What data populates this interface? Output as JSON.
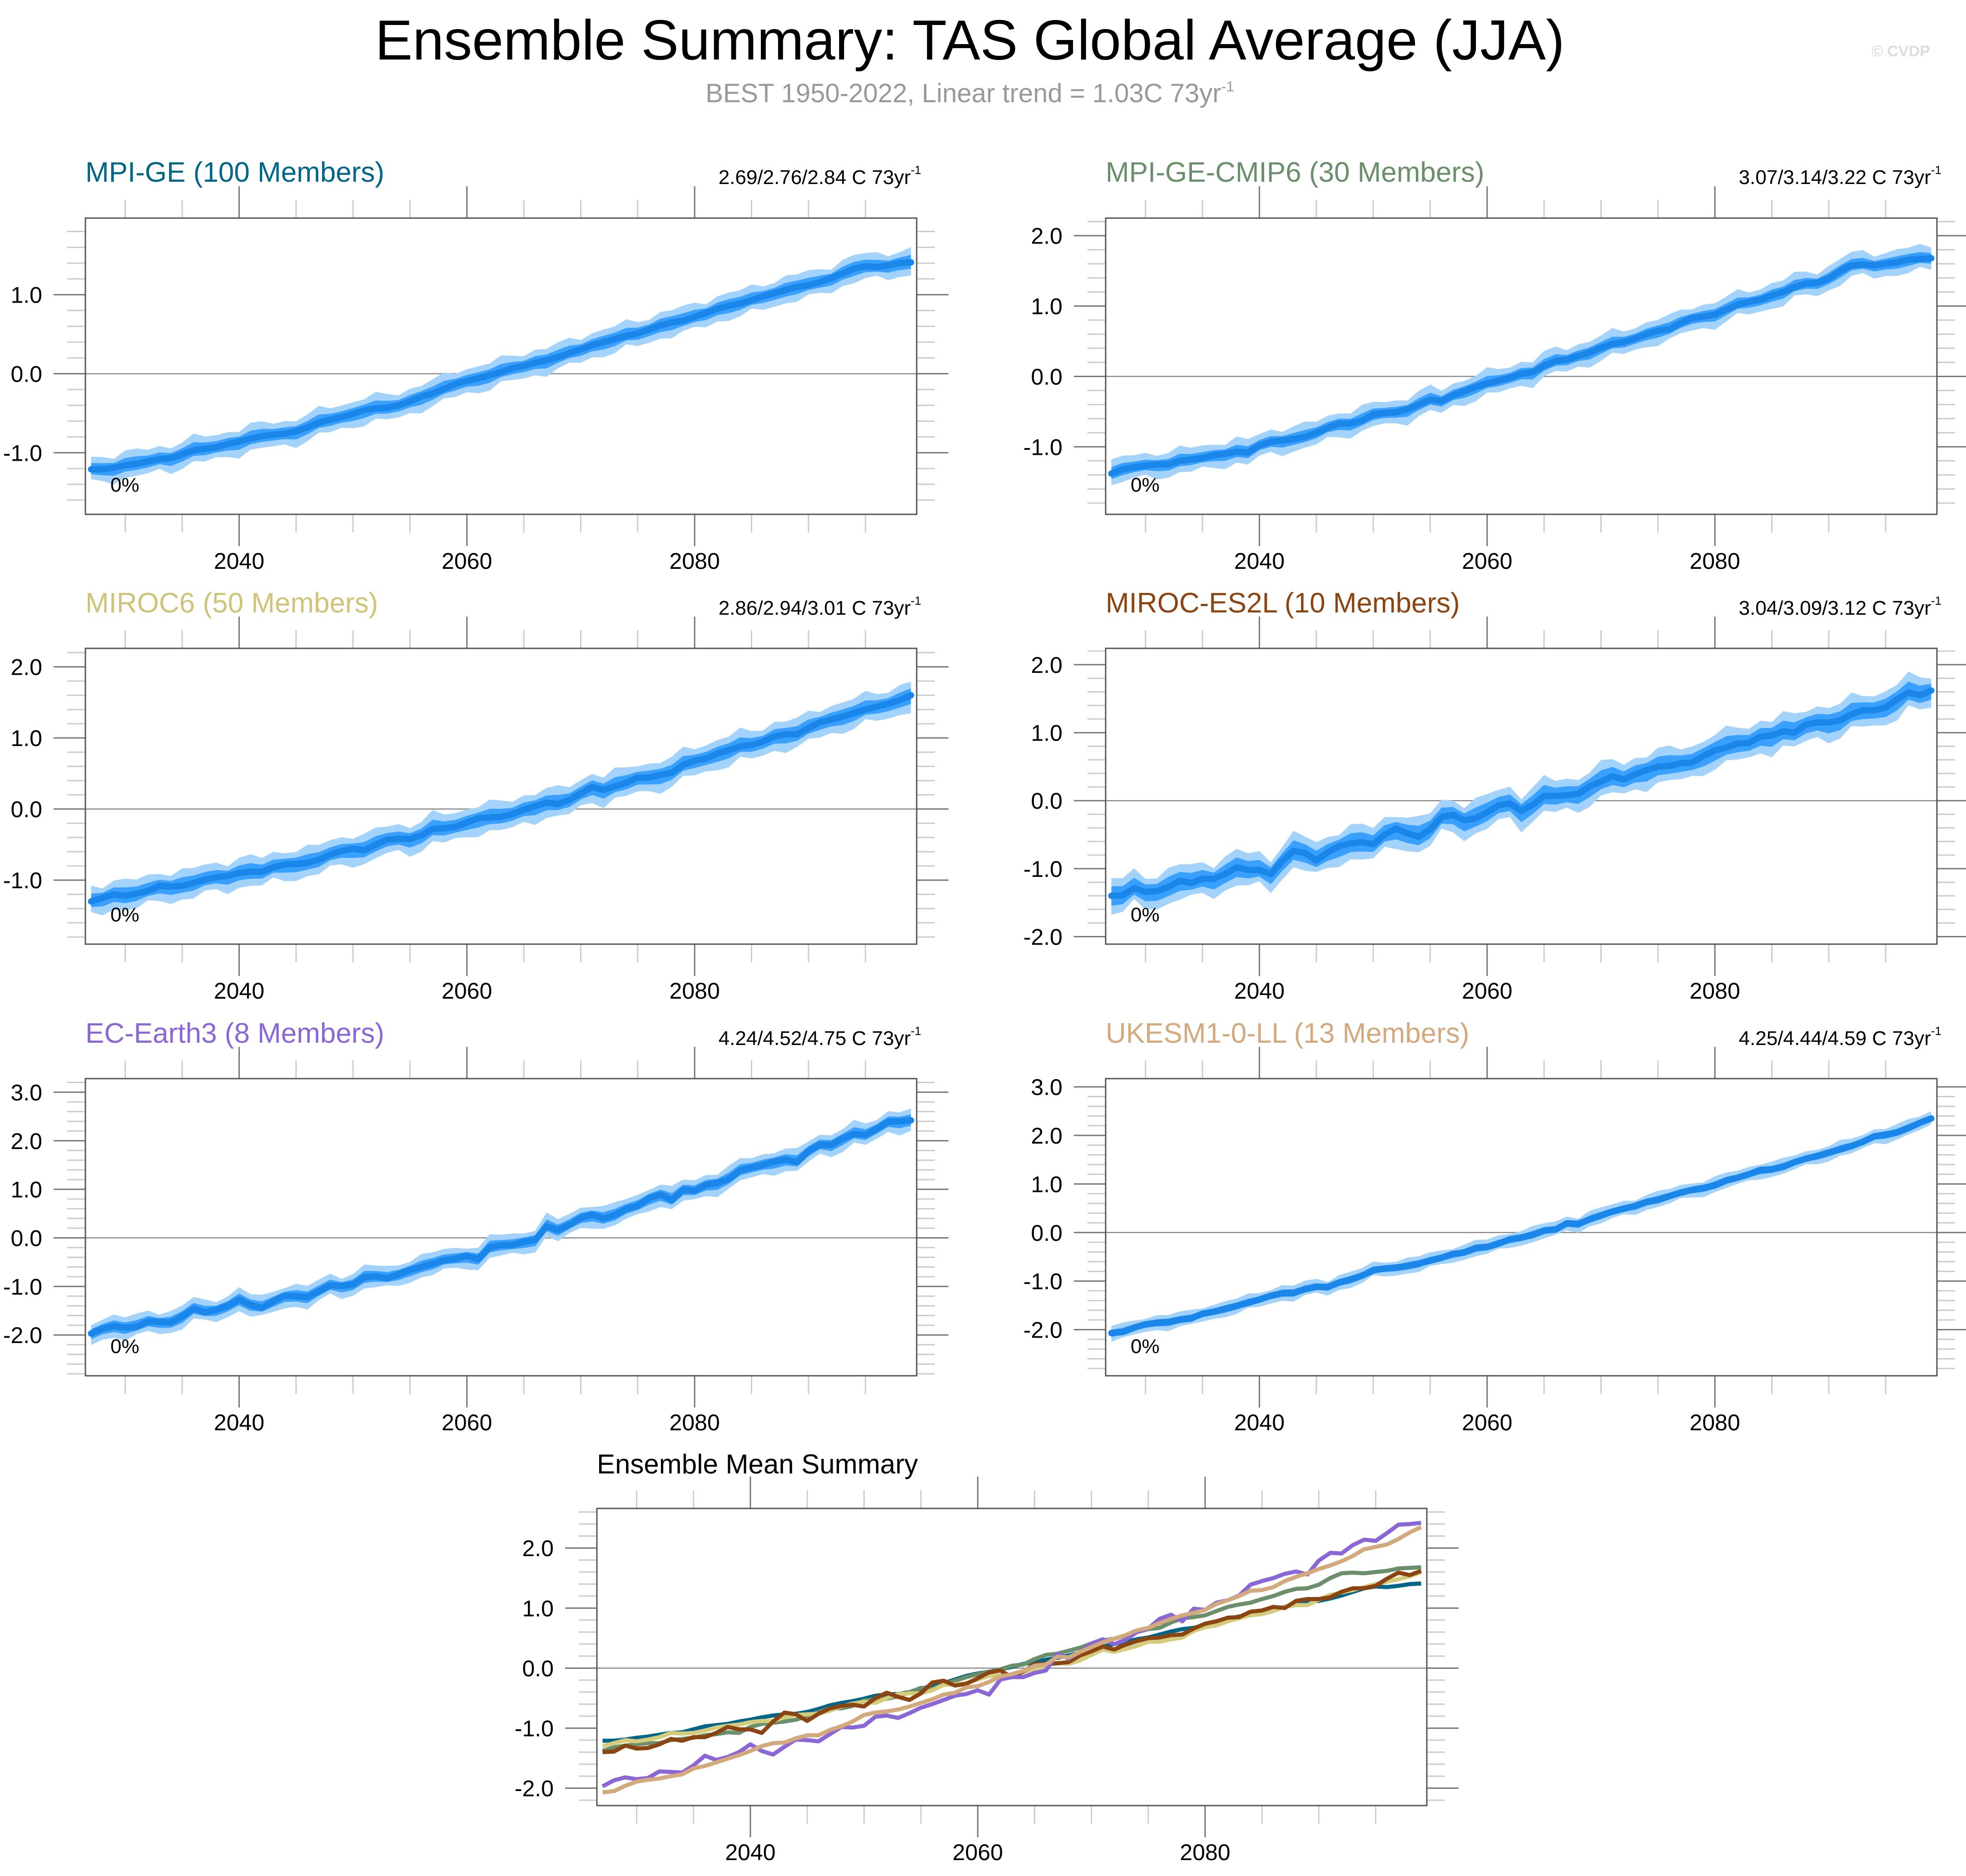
{
  "title": "Ensemble Summary: TAS Global Average (JJA)",
  "subtitle": {
    "text": "BEST 1950-2022, Linear trend = 1.03C 73yr",
    "superscript": "-1"
  },
  "watermark": "© CVDP",
  "colors": {
    "band_outer": "#a3d2fb",
    "band_inner": "#3aa0ff",
    "mean_line": "#1a86ea",
    "zero_line": "#888888",
    "axis": "#555555"
  },
  "chart_data": [
    {
      "type": "area",
      "title": "MPI-GE (100 Members)",
      "title_color": "#006688",
      "trend_label": "2.69/2.76/2.84 C 73yr",
      "trend_superscript": "-1",
      "percent_label": "0%",
      "x_start": 2027,
      "x_end": 2099,
      "xlim": [
        2026.5,
        2099.5
      ],
      "ylim": [
        -1.78,
        1.97
      ],
      "xticks": [
        2040,
        2060,
        2080
      ],
      "yticks": [
        -1.0,
        0.0,
        1.0
      ],
      "ytick_labels": [
        "-1.0",
        "0.0",
        "1.0"
      ],
      "grid": false,
      "mean": [
        -1.21,
        -1.21,
        -1.19,
        -1.16,
        -1.14,
        -1.11,
        -1.08,
        -1.07,
        -1.02,
        -0.97,
        -0.95,
        -0.93,
        -0.89,
        -0.86,
        -0.82,
        -0.79,
        -0.77,
        -0.76,
        -0.73,
        -0.68,
        -0.62,
        -0.58,
        -0.55,
        -0.51,
        -0.46,
        -0.44,
        -0.43,
        -0.4,
        -0.35,
        -0.29,
        -0.25,
        -0.19,
        -0.13,
        -0.09,
        -0.06,
        -0.02,
        0.02,
        0.07,
        0.1,
        0.14,
        0.17,
        0.21,
        0.26,
        0.31,
        0.36,
        0.4,
        0.44,
        0.48,
        0.51,
        0.56,
        0.61,
        0.65,
        0.67,
        0.72,
        0.77,
        0.82,
        0.86,
        0.89,
        0.93,
        0.98,
        1.02,
        1.06,
        1.1,
        1.12,
        1.16,
        1.21,
        1.27,
        1.33,
        1.36,
        1.35,
        1.37,
        1.4,
        1.41
      ],
      "inner_halfwidth": 0.08,
      "outer_halfwidth": 0.16,
      "band_color": "#3aa0ff"
    },
    {
      "type": "area",
      "title": "MPI-GE-CMIP6 (30 Members)",
      "title_color": "#6b8f6b",
      "trend_label": "3.07/3.14/3.22 C 73yr",
      "trend_superscript": "-1",
      "percent_label": "0%",
      "x_start": 2027,
      "x_end": 2099,
      "xlim": [
        2026.5,
        2099.5
      ],
      "ylim": [
        -1.96,
        2.25
      ],
      "xticks": [
        2040,
        2060,
        2080
      ],
      "yticks": [
        -1.0,
        0.0,
        1.0,
        2.0
      ],
      "ytick_labels": [
        "-1.0",
        "0.0",
        "1.0",
        "2.0"
      ],
      "grid": false,
      "mean": [
        -1.38,
        -1.32,
        -1.29,
        -1.27,
        -1.25,
        -1.25,
        -1.2,
        -1.18,
        -1.16,
        -1.12,
        -1.1,
        -1.07,
        -1.08,
        -0.98,
        -0.93,
        -0.91,
        -0.89,
        -0.86,
        -0.8,
        -0.73,
        -0.67,
        -0.67,
        -0.63,
        -0.54,
        -0.52,
        -0.51,
        -0.47,
        -0.4,
        -0.33,
        -0.35,
        -0.27,
        -0.21,
        -0.15,
        -0.1,
        -0.06,
        -0.02,
        0.04,
        0.06,
        0.15,
        0.22,
        0.24,
        0.29,
        0.34,
        0.41,
        0.46,
        0.49,
        0.54,
        0.6,
        0.65,
        0.67,
        0.76,
        0.83,
        0.85,
        0.88,
        0.95,
        1.02,
        1.06,
        1.09,
        1.15,
        1.2,
        1.27,
        1.32,
        1.33,
        1.39,
        1.5,
        1.58,
        1.59,
        1.58,
        1.6,
        1.62,
        1.66,
        1.67,
        1.68
      ],
      "inner_halfwidth": 0.08,
      "outer_halfwidth": 0.17,
      "band_color": "#3aa0ff"
    },
    {
      "type": "area",
      "title": "MIROC6 (50 Members)",
      "title_color": "#cfc47a",
      "trend_label": "2.86/2.94/3.01 C 73yr",
      "trend_superscript": "-1",
      "percent_label": "0%",
      "x_start": 2027,
      "x_end": 2099,
      "xlim": [
        2026.5,
        2099.5
      ],
      "ylim": [
        -1.9,
        2.26
      ],
      "xticks": [
        2040,
        2060,
        2080
      ],
      "yticks": [
        -1.0,
        0.0,
        1.0,
        2.0
      ],
      "ytick_labels": [
        "-1.0",
        "0.0",
        "1.0",
        "2.0"
      ],
      "grid": false,
      "mean": [
        -1.3,
        -1.25,
        -1.2,
        -1.22,
        -1.19,
        -1.15,
        -1.08,
        -1.09,
        -1.08,
        -1.04,
        -0.99,
        -0.96,
        -0.94,
        -0.9,
        -0.88,
        -0.88,
        -0.82,
        -0.78,
        -0.77,
        -0.76,
        -0.71,
        -0.64,
        -0.59,
        -0.56,
        -0.58,
        -0.5,
        -0.43,
        -0.42,
        -0.42,
        -0.37,
        -0.28,
        -0.27,
        -0.25,
        -0.19,
        -0.13,
        -0.12,
        -0.11,
        -0.07,
        -0.01,
        0.04,
        0.09,
        0.07,
        0.13,
        0.22,
        0.31,
        0.27,
        0.32,
        0.37,
        0.44,
        0.44,
        0.48,
        0.51,
        0.62,
        0.68,
        0.71,
        0.78,
        0.83,
        0.88,
        0.9,
        0.95,
        1.02,
        1.05,
        1.05,
        1.14,
        1.22,
        1.26,
        1.3,
        1.35,
        1.4,
        1.44,
        1.48,
        1.53,
        1.6
      ],
      "inner_halfwidth": 0.1,
      "outer_halfwidth": 0.2,
      "band_color": "#3aa0ff"
    },
    {
      "type": "area",
      "title": "MIROC-ES2L (10 Members)",
      "title_color": "#8b4513",
      "trend_label": "3.04/3.09/3.12 C 73yr",
      "trend_superscript": "-1",
      "percent_label": "0%",
      "x_start": 2027,
      "x_end": 2099,
      "xlim": [
        2026.5,
        2099.5
      ],
      "ylim": [
        -2.11,
        2.24
      ],
      "xticks": [
        2040,
        2060,
        2080
      ],
      "yticks": [
        -2.0,
        -1.0,
        0.0,
        1.0,
        2.0
      ],
      "ytick_labels": [
        "-2.0",
        "-1.0",
        "0.0",
        "1.0",
        "2.0"
      ],
      "grid": false,
      "mean": [
        -1.4,
        -1.39,
        -1.29,
        -1.34,
        -1.33,
        -1.27,
        -1.18,
        -1.21,
        -1.15,
        -1.15,
        -1.08,
        -0.98,
        -1.02,
        -1.02,
        -1.08,
        -0.89,
        -0.74,
        -0.77,
        -0.88,
        -0.76,
        -0.67,
        -0.63,
        -0.61,
        -0.64,
        -0.5,
        -0.41,
        -0.48,
        -0.53,
        -0.42,
        -0.24,
        -0.21,
        -0.29,
        -0.26,
        -0.17,
        -0.07,
        -0.04,
        -0.15,
        -0.06,
        0.07,
        0.07,
        0.08,
        0.1,
        0.21,
        0.28,
        0.36,
        0.31,
        0.39,
        0.45,
        0.5,
        0.51,
        0.55,
        0.56,
        0.66,
        0.74,
        0.78,
        0.84,
        0.85,
        0.94,
        0.96,
        1.02,
        1.0,
        1.12,
        1.15,
        1.15,
        1.18,
        1.27,
        1.33,
        1.33,
        1.37,
        1.49,
        1.59,
        1.55,
        1.62
      ],
      "inner_halfwidth": 0.13,
      "outer_halfwidth": 0.24,
      "band_color": "#3aa0ff"
    },
    {
      "type": "area",
      "title": "EC-Earth3 (8 Members)",
      "title_color": "#8b67d6",
      "trend_label": "4.24/4.52/4.75 C 73yr",
      "trend_superscript": "-1",
      "percent_label": "0%",
      "x_start": 2027,
      "x_end": 2099,
      "xlim": [
        2026.5,
        2099.5
      ],
      "ylim": [
        -2.84,
        3.28
      ],
      "xticks": [
        2040,
        2060,
        2080
      ],
      "yticks": [
        -2.0,
        -1.0,
        0.0,
        1.0,
        2.0,
        3.0
      ],
      "ytick_labels": [
        "-2.0",
        "-1.0",
        "0.0",
        "1.0",
        "2.0",
        "3.0"
      ],
      "grid": false,
      "mean": [
        -1.97,
        -1.87,
        -1.82,
        -1.85,
        -1.83,
        -1.72,
        -1.73,
        -1.74,
        -1.62,
        -1.46,
        -1.53,
        -1.48,
        -1.4,
        -1.27,
        -1.38,
        -1.44,
        -1.31,
        -1.19,
        -1.2,
        -1.22,
        -1.1,
        -0.98,
        -0.99,
        -0.96,
        -0.81,
        -0.79,
        -0.83,
        -0.75,
        -0.66,
        -0.6,
        -0.53,
        -0.46,
        -0.43,
        -0.37,
        -0.44,
        -0.19,
        -0.15,
        -0.15,
        -0.08,
        -0.04,
        0.24,
        0.16,
        0.27,
        0.41,
        0.48,
        0.4,
        0.47,
        0.6,
        0.66,
        0.82,
        0.89,
        0.78,
        0.99,
        0.97,
        1.09,
        1.13,
        1.21,
        1.39,
        1.45,
        1.5,
        1.57,
        1.61,
        1.56,
        1.79,
        1.92,
        1.91,
        2.05,
        2.14,
        2.12,
        2.25,
        2.39,
        2.4,
        2.42
      ],
      "inner_halfwidth": 0.11,
      "outer_halfwidth": 0.22,
      "band_color": "#3aa0ff"
    },
    {
      "type": "area",
      "title": "UKESM1-0-LL (13 Members)",
      "title_color": "#d2aa7d",
      "trend_label": "4.25/4.44/4.59 C 73yr",
      "trend_superscript": "-1",
      "percent_label": "0%",
      "x_start": 2027,
      "x_end": 2099,
      "xlim": [
        2026.5,
        2099.5
      ],
      "ylim": [
        -2.95,
        3.17
      ],
      "xticks": [
        2040,
        2060,
        2080
      ],
      "yticks": [
        -2.0,
        -1.0,
        0.0,
        1.0,
        2.0,
        3.0
      ],
      "ytick_labels": [
        "-2.0",
        "-1.0",
        "0.0",
        "1.0",
        "2.0",
        "3.0"
      ],
      "grid": false,
      "mean": [
        -2.07,
        -2.05,
        -1.96,
        -1.89,
        -1.86,
        -1.84,
        -1.8,
        -1.77,
        -1.67,
        -1.63,
        -1.57,
        -1.51,
        -1.45,
        -1.38,
        -1.3,
        -1.25,
        -1.24,
        -1.17,
        -1.12,
        -1.12,
        -1.03,
        -0.97,
        -0.89,
        -0.78,
        -0.74,
        -0.72,
        -0.69,
        -0.64,
        -0.58,
        -0.52,
        -0.44,
        -0.41,
        -0.32,
        -0.3,
        -0.23,
        -0.14,
        -0.1,
        -0.05,
        0.04,
        0.06,
        0.19,
        0.18,
        0.27,
        0.35,
        0.43,
        0.49,
        0.55,
        0.63,
        0.67,
        0.75,
        0.82,
        0.88,
        0.92,
        0.97,
        1.07,
        1.13,
        1.2,
        1.29,
        1.3,
        1.35,
        1.45,
        1.52,
        1.58,
        1.65,
        1.71,
        1.78,
        1.87,
        1.98,
        2.02,
        2.06,
        2.15,
        2.26,
        2.35
      ],
      "inner_halfwidth": 0.07,
      "outer_halfwidth": 0.15,
      "band_color": "#3aa0ff"
    },
    {
      "type": "line",
      "title": "Ensemble Mean Summary",
      "x_start": 2027,
      "x_end": 2099,
      "xlim": [
        2026.5,
        2099.5
      ],
      "ylim": [
        -2.29,
        2.66
      ],
      "xticks": [
        2040,
        2060,
        2080
      ],
      "yticks": [
        -2.0,
        -1.0,
        0.0,
        1.0,
        2.0
      ],
      "ytick_labels": [
        "-2.0",
        "-1.0",
        "0.0",
        "1.0",
        "2.0"
      ],
      "grid": false,
      "series_ref": [
        "MPI-GE",
        "MPI-GE-CMIP6",
        "MIROC6",
        "MIROC-ES2L",
        "EC-Earth3",
        "UKESM1-0-LL"
      ],
      "series_colors": [
        "#006688",
        "#6b8f6b",
        "#d4cc7c",
        "#8b4513",
        "#8b67d6",
        "#d2aa7d"
      ],
      "series_source": "mean of panels 1-6 in the same order"
    }
  ]
}
